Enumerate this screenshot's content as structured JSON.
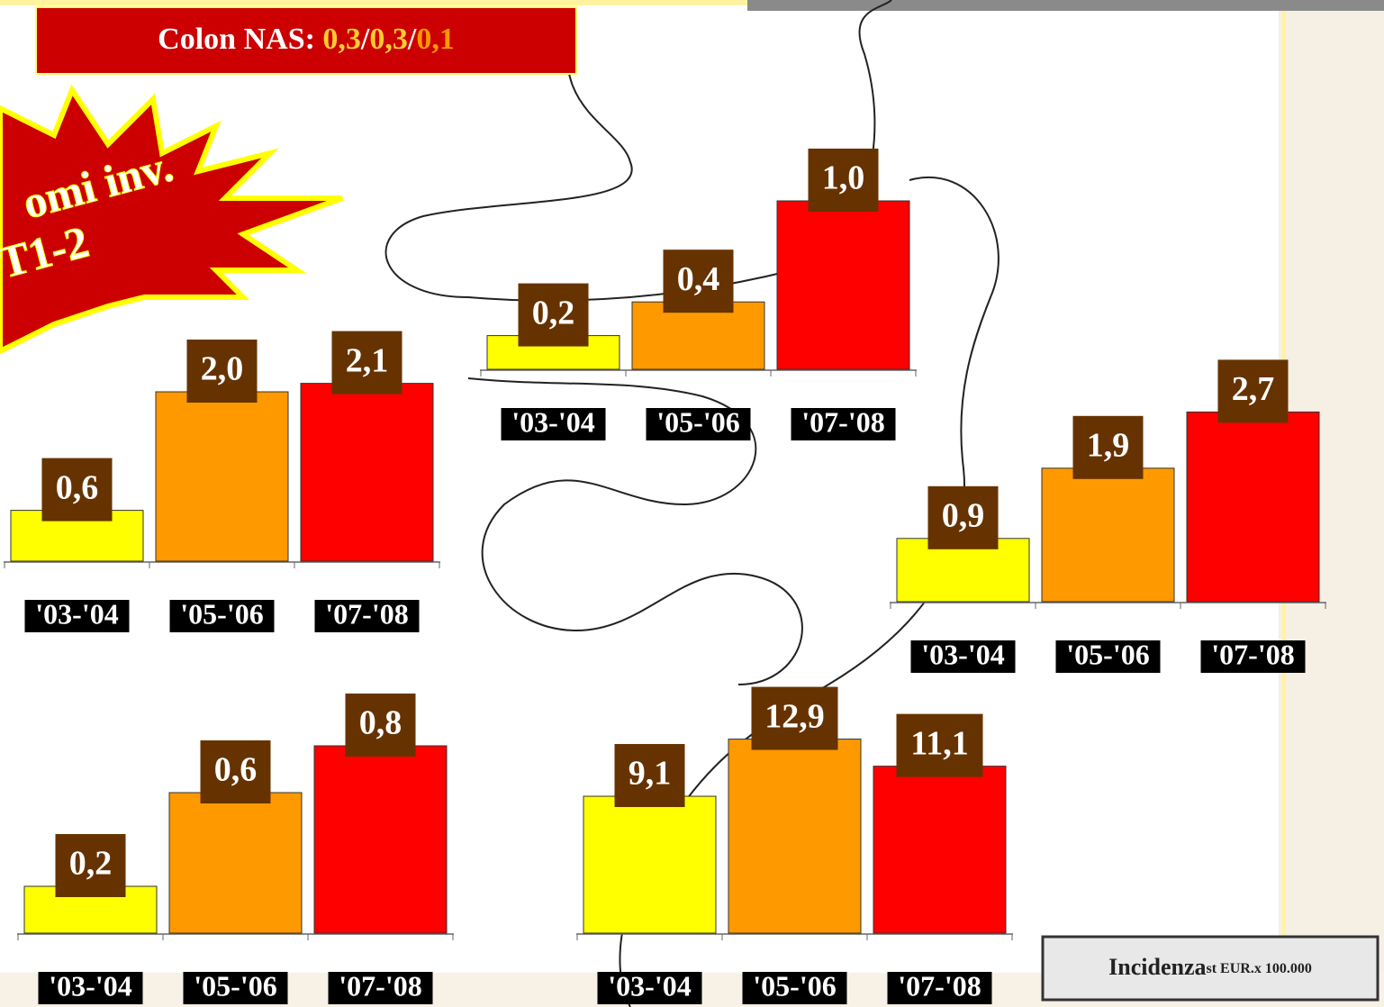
{
  "header": {
    "label": "Colon NAS:",
    "parts": [
      "0,3",
      "0,3",
      "0,1"
    ],
    "part_colors": [
      "#ffcc33",
      "#ffcc33",
      "#ff9900"
    ],
    "separator": "/"
  },
  "burst": [
    "omi inv.",
    "T1-2"
  ],
  "note": {
    "main": "Incidenza",
    "small": "st EUR.x 100.000"
  },
  "chart_data": [
    {
      "type": "bar",
      "categories": [
        "'03-'04",
        "'05-'06",
        "'07-'08"
      ],
      "values": [
        0.6,
        2.0,
        2.1
      ],
      "value_labels": [
        "0,6",
        "2,0",
        "2,1"
      ],
      "colors": [
        "#ffff00",
        "#ff9900",
        "#ff0000"
      ]
    },
    {
      "type": "bar",
      "categories": [
        "'03-'04",
        "'05-'06",
        "'07-'08"
      ],
      "values": [
        0.2,
        0.4,
        1.0
      ],
      "value_labels": [
        "0,2",
        "0,4",
        "1,0"
      ],
      "colors": [
        "#ffff00",
        "#ff9900",
        "#ff0000"
      ]
    },
    {
      "type": "bar",
      "categories": [
        "'03-'04",
        "'05-'06",
        "'07-'08"
      ],
      "values": [
        0.9,
        1.9,
        2.7
      ],
      "value_labels": [
        "0,9",
        "1,9",
        "2,7"
      ],
      "colors": [
        "#ffff00",
        "#ff9900",
        "#ff0000"
      ]
    },
    {
      "type": "bar",
      "categories": [
        "'03-'04",
        "'05-'06",
        "'07-'08"
      ],
      "values": [
        0.2,
        0.6,
        0.8
      ],
      "value_labels": [
        "0,2",
        "0,6",
        "0,8"
      ],
      "colors": [
        "#ffff00",
        "#ff9900",
        "#ff0000"
      ]
    },
    {
      "type": "bar",
      "categories": [
        "'03-'04",
        "'05-'06",
        "'07-'08"
      ],
      "values": [
        9.1,
        12.9,
        11.1
      ],
      "value_labels": [
        "9,1",
        "12,9",
        "11,1"
      ],
      "colors": [
        "#ffff00",
        "#ff9900",
        "#ff0000"
      ]
    }
  ]
}
